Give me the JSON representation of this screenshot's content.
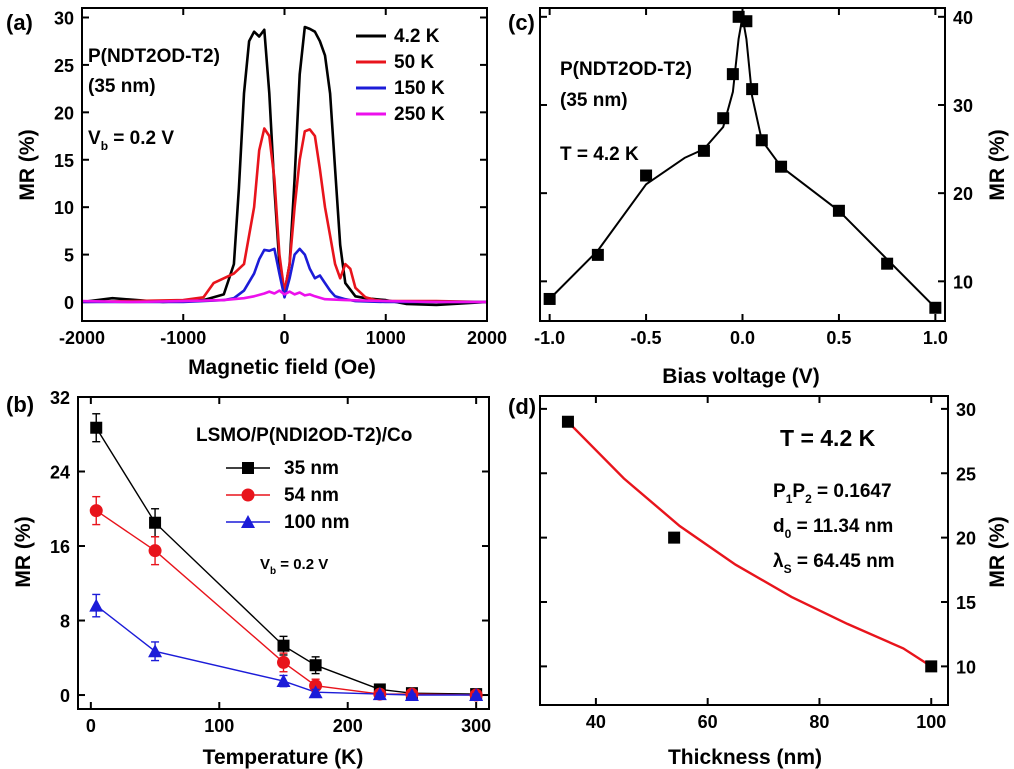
{
  "chart_data": [
    {
      "panel": "(a)",
      "type": "line",
      "xlabel": "Magnetic field (Oe)",
      "ylabel": "MR (%)",
      "xlim": [
        -2000,
        2000
      ],
      "ylim": [
        -2,
        31
      ],
      "xticks": [
        -2000,
        -1000,
        0,
        1000,
        2000
      ],
      "yticks": [
        0,
        5,
        10,
        15,
        20,
        25,
        30
      ],
      "annotations": [
        "P(NDT2OD-T2)",
        "(35 nm)"
      ],
      "bias": {
        "main": "V",
        "sub": "b",
        "rest": " = 0.2 V"
      },
      "legend_position": "top-right",
      "series": [
        {
          "name": "4.2 K",
          "color": "#000000",
          "x": [
            -2000,
            -1700,
            -1200,
            -800,
            -600,
            -500,
            -450,
            -400,
            -350,
            -300,
            -250,
            -200,
            -150,
            -100,
            -50,
            0,
            50,
            100,
            150,
            200,
            250,
            300,
            350,
            400,
            450,
            500,
            550,
            600,
            700,
            800,
            1000,
            1200,
            1500,
            2000
          ],
          "y": [
            0,
            0.4,
            0,
            0.2,
            0.8,
            4,
            12,
            22,
            27.5,
            28.5,
            28,
            28.7,
            22,
            12,
            4,
            1,
            4,
            13,
            24,
            29,
            28.8,
            28.5,
            27.5,
            26,
            22,
            14,
            6,
            2,
            0.6,
            0.4,
            0.2,
            -0.2,
            -0.3,
            0
          ]
        },
        {
          "name": "50 K",
          "color": "#e8141c",
          "x": [
            -2000,
            -1500,
            -1000,
            -800,
            -700,
            -600,
            -500,
            -400,
            -300,
            -250,
            -200,
            -150,
            -100,
            -50,
            0,
            50,
            100,
            150,
            200,
            250,
            300,
            350,
            400,
            450,
            500,
            550,
            600,
            650,
            700,
            800,
            900,
            1000,
            1500,
            2000
          ],
          "y": [
            0,
            0.1,
            0.2,
            0.5,
            2,
            2.5,
            3,
            4,
            10,
            16,
            18.3,
            17.5,
            13,
            5,
            1,
            4,
            10,
            15,
            18,
            18.2,
            17.5,
            14,
            10,
            7,
            4,
            2.5,
            4,
            3.5,
            1.5,
            0.5,
            0.2,
            0.1,
            0.1,
            0
          ]
        },
        {
          "name": "150 K",
          "color": "#1c1cd8",
          "x": [
            -2000,
            -1500,
            -1000,
            -600,
            -500,
            -400,
            -300,
            -250,
            -200,
            -150,
            -100,
            -50,
            0,
            50,
            100,
            150,
            200,
            250,
            300,
            350,
            400,
            450,
            500,
            600,
            700,
            1000,
            1500,
            2000
          ],
          "y": [
            0,
            0,
            0,
            0.2,
            0.4,
            1.2,
            3,
            4.5,
            5.5,
            5.4,
            5.6,
            3,
            0.5,
            2.5,
            5,
            5.6,
            5,
            3.5,
            2.5,
            2.8,
            2,
            1.2,
            0.6,
            0.3,
            0.1,
            0,
            0,
            0
          ]
        },
        {
          "name": "250 K",
          "color": "#ec10ec",
          "x": [
            -2000,
            -1500,
            -1000,
            -600,
            -400,
            -300,
            -200,
            -150,
            -100,
            -50,
            0,
            50,
            100,
            150,
            200,
            250,
            300,
            400,
            600,
            1000,
            1500,
            2000
          ],
          "y": [
            0.1,
            0,
            0.1,
            0.2,
            0.4,
            0.6,
            0.9,
            1.1,
            0.9,
            1.2,
            0.8,
            1.1,
            0.8,
            1,
            0.7,
            0.8,
            0.6,
            0.3,
            0.2,
            0.1,
            0,
            0
          ]
        }
      ]
    },
    {
      "panel": "(c)",
      "type": "scatter",
      "xlabel": "Bias voltage (V)",
      "ylabel": "MR (%)",
      "ylabel_side": "right",
      "xlim": [
        -1.05,
        1.05
      ],
      "ylim": [
        5.5,
        41
      ],
      "xticks": [
        "-1.0",
        "-0.5",
        "0.0",
        "0.5",
        "1.0"
      ],
      "yticks": [
        10,
        20,
        30,
        40
      ],
      "annotations": [
        "P(NDT2OD-T2)",
        "(35 nm)",
        "T = 4.2 K"
      ],
      "points": {
        "x": [
          -1.0,
          -0.75,
          -0.5,
          -0.2,
          -0.1,
          -0.05,
          -0.02,
          0.02,
          0.05,
          0.1,
          0.2,
          0.5,
          0.75,
          1.0
        ],
        "y": [
          8,
          13,
          22,
          24.8,
          28.5,
          33.5,
          40,
          39.5,
          31.8,
          26,
          23,
          18,
          12,
          7
        ]
      },
      "fit": {
        "x": [
          -1.0,
          -0.75,
          -0.5,
          -0.3,
          -0.2,
          -0.1,
          -0.05,
          -0.02,
          0,
          0.02,
          0.05,
          0.1,
          0.2,
          0.5,
          0.75,
          1.0
        ],
        "y": [
          8,
          13.5,
          21,
          24,
          25,
          27.5,
          31.5,
          37.5,
          40,
          37.5,
          31,
          26,
          23,
          18,
          12.5,
          7
        ]
      }
    },
    {
      "panel": "(b)",
      "type": "line",
      "title": "LSMO/P(NDI2OD-T2)/Co",
      "xlabel": "Temperature (K)",
      "ylabel": "MR (%)",
      "xlim": [
        -10,
        310
      ],
      "ylim": [
        -1.5,
        32
      ],
      "xticks": [
        0,
        100,
        200,
        300
      ],
      "yticks": [
        0,
        8,
        16,
        24,
        32
      ],
      "bias": {
        "main": "V",
        "sub": "b",
        "rest": " = 0.2 V"
      },
      "legend_position": "top-right",
      "series": [
        {
          "name": "35 nm",
          "color": "#000000",
          "marker": "square",
          "x": [
            4.2,
            50,
            150,
            175,
            225,
            250,
            300
          ],
          "y": [
            28.7,
            18.5,
            5.3,
            3.2,
            0.6,
            0.2,
            0.1
          ],
          "err": [
            1.5,
            1.5,
            1.0,
            0.9,
            0.3,
            0.2,
            0.1
          ]
        },
        {
          "name": "54 nm",
          "color": "#e8141c",
          "marker": "circle",
          "x": [
            4.2,
            50,
            150,
            175,
            225,
            250,
            300
          ],
          "y": [
            19.8,
            15.5,
            3.5,
            1.0,
            0.1,
            0.1,
            0
          ],
          "err": [
            1.5,
            1.5,
            1.0,
            0.7,
            0.2,
            0.1,
            0.1
          ]
        },
        {
          "name": "100 nm",
          "color": "#1c1cd8",
          "marker": "triangle",
          "x": [
            4.2,
            50,
            150,
            175,
            225,
            250,
            300
          ],
          "y": [
            9.6,
            4.7,
            1.5,
            0.3,
            0.1,
            0,
            0
          ],
          "err": [
            1.2,
            1.0,
            0.6,
            0.3,
            0.1,
            0.1,
            0.1
          ]
        }
      ]
    },
    {
      "panel": "(d)",
      "type": "scatter",
      "xlabel": "Thickness (nm)",
      "ylabel": "MR (%)",
      "ylabel_side": "right",
      "xlim": [
        30,
        103
      ],
      "ylim": [
        7,
        31
      ],
      "xticks": [
        40,
        60,
        80,
        100
      ],
      "yticks": [
        10,
        15,
        20,
        25,
        30
      ],
      "temperature": "T = 4.2 K",
      "params": [
        {
          "main": "P",
          "sub1": "1",
          "mid": "P",
          "sub2": "2",
          "rest": " = 0.1647"
        },
        {
          "main": "d",
          "sub1": "0",
          "rest": " = 11.34 nm"
        },
        {
          "main": "λ",
          "sub1": "S",
          "rest": " = 64.45 nm"
        }
      ],
      "points": {
        "x": [
          35,
          54,
          100
        ],
        "y": [
          29,
          20,
          10
        ]
      },
      "fit_color": "#e8141c",
      "fit": {
        "x": [
          35,
          45,
          55,
          65,
          75,
          85,
          95,
          100
        ],
        "y": [
          29,
          24.6,
          20.9,
          17.9,
          15.4,
          13.3,
          11.4,
          10.0
        ]
      }
    }
  ]
}
